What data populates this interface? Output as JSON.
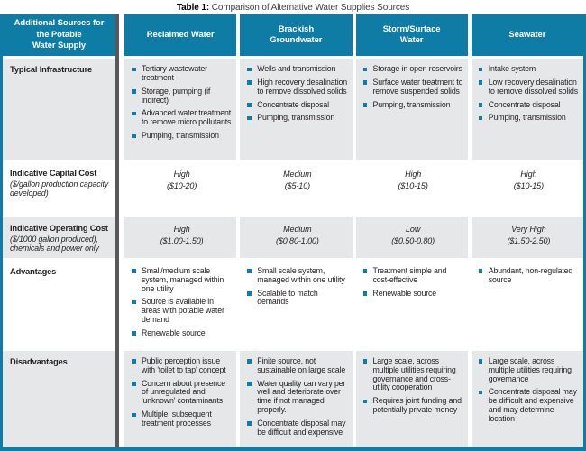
{
  "title": {
    "label": "Table 1:",
    "text": "Comparison of Alternative Water Supplies Sources"
  },
  "colors": {
    "header_teal": "#0e7ca5",
    "row_gray": "#e6e7e8",
    "divider_dark": "#59595b",
    "bullet_blue": "#0b7dae",
    "text_dark": "#231f20"
  },
  "table": {
    "corner_header": "Additional Sources for\nthe Potable\nWater Supply",
    "columns": [
      "Reclaimed Water",
      "Brackish\nGroundwater",
      "Storm/Surface\nWater",
      "Seawater"
    ],
    "rows": [
      {
        "label": "Typical Infrastructure",
        "sublabel": "",
        "kind": "bullets",
        "cells": [
          {
            "items": [
              "Tertiary wastewater treatment",
              "Storage, pumping (if indirect)",
              "Advanced water treatment to remove micro pollutants",
              "Pumping, transmission"
            ]
          },
          {
            "items": [
              "Wells and transmission",
              "High recovery desalination to remove dissolved solids",
              "Concentrate disposal",
              "Pumping, transmission"
            ]
          },
          {
            "items": [
              "Storage in open reservoirs",
              "Surface water treatment to remove suspended solids",
              "Pumping, transmission"
            ]
          },
          {
            "items": [
              "Intake system",
              "Low recovery desalination to remove dissolved solids",
              "Concentrate disposal",
              "Pumping, transmission"
            ]
          }
        ]
      },
      {
        "label": "Indicative Capital Cost",
        "sublabel": "($/gallon production capacity developed)",
        "kind": "value",
        "cells": [
          {
            "level": "High",
            "range": "($10-20)"
          },
          {
            "level": "Medium",
            "range": "($5-10)"
          },
          {
            "level": "High",
            "range": "($10-15)"
          },
          {
            "level": "High",
            "range": "($10-15)"
          }
        ]
      },
      {
        "label": "Indicative Operating Cost",
        "sublabel": "($/1000 gallon produced), chemicals and power only",
        "kind": "value",
        "cells": [
          {
            "level": "High",
            "range": "($1.00-1.50)"
          },
          {
            "level": "Medium",
            "range": "($0.80-1.00)"
          },
          {
            "level": "Low",
            "range": "($0.50-0.80)"
          },
          {
            "level": "Very High",
            "range": "($1.50-2.50)"
          }
        ]
      },
      {
        "label": "Advantages",
        "sublabel": "",
        "kind": "bullets",
        "cells": [
          {
            "items": [
              "Small/medium scale system, managed within one utility",
              "Source is available in areas with potable water demand",
              "Renewable source"
            ]
          },
          {
            "items": [
              "Small scale system, managed within one utility",
              "Scalable to match demands"
            ]
          },
          {
            "items": [
              "Treatment simple and cost-effective",
              "Renewable source"
            ]
          },
          {
            "items": [
              "Abundant, non-regulated source"
            ]
          }
        ]
      },
      {
        "label": "Disadvantages",
        "sublabel": "",
        "kind": "bullets",
        "cells": [
          {
            "items": [
              "Public perception issue with 'toilet to tap' concept",
              "Concern about presence of unregulated and 'unknown' contaminants",
              "Multiple, subsequent treatment processes"
            ]
          },
          {
            "items": [
              "Finite source, not sustainable on large scale",
              "Water quality can vary per well and deteriorate over time if not managed properly.",
              "Concentrate disposal may be difficult and expensive"
            ]
          },
          {
            "items": [
              "Large scale, across multiple utilities requiring governance and cross-utility cooperation",
              "Requires joint funding and potentially private money"
            ]
          },
          {
            "items": [
              "Large scale, across multiple utilities requiring governance",
              "Concentrate disposal may be difficult and expensive and may determine location"
            ]
          }
        ]
      }
    ]
  }
}
